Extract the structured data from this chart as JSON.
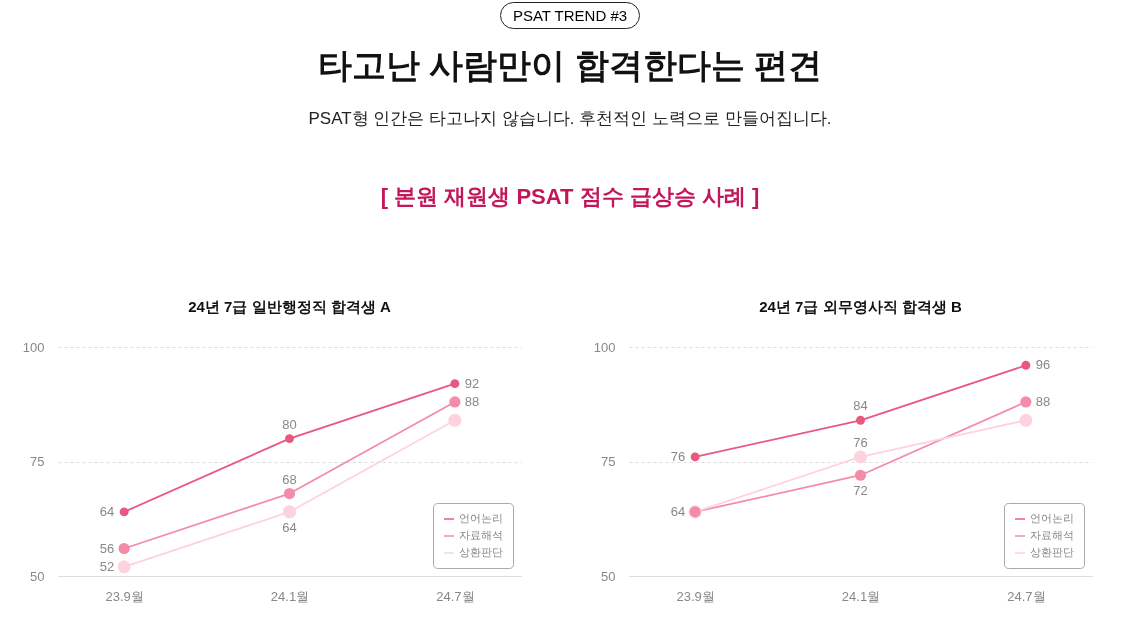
{
  "chart_data": [
    {
      "type": "line",
      "title": "24년 7급 일반행정직 합격생 A",
      "annotations": [
        "PSAT TREND #3",
        "타고난 사람만이 합격한다는 편견",
        "PSAT형 인간은 타고나지 않습니다. 후천적인 노력으로 만들어집니다.",
        "[ 본원 재원생 PSAT 점수 급상승 사례 ]"
      ],
      "categories": [
        "23.9월",
        "24.1월",
        "24.7월"
      ],
      "series": [
        {
          "name": "언어논리",
          "color": "#e8587f",
          "values": [
            64,
            80,
            92
          ],
          "value_labels": [
            "64",
            "80",
            "92"
          ]
        },
        {
          "name": "자료해석",
          "color": "#f48ca9",
          "values": [
            56,
            68,
            88
          ],
          "value_labels": [
            "56",
            "68",
            "88"
          ]
        },
        {
          "name": "상환판단",
          "color": "#fdd3de",
          "values": [
            52,
            64,
            84
          ],
          "value_labels": [
            "52",
            "64",
            null
          ]
        }
      ],
      "ylim": [
        50,
        100
      ],
      "yticks": [
        50,
        75,
        100
      ],
      "grid": "y",
      "legend": "bottom right",
      "marker": "circle"
    },
    {
      "type": "line",
      "title": "24년 7급 외무영사직 합격생 B",
      "categories": [
        "23.9월",
        "24.1월",
        "24.7월"
      ],
      "series": [
        {
          "name": "언어논리",
          "color": "#e8587f",
          "values": [
            76,
            84,
            96
          ],
          "value_labels": [
            "76",
            "84",
            "96"
          ]
        },
        {
          "name": "자료해석",
          "color": "#f48ca9",
          "values": [
            64,
            72,
            88
          ],
          "value_labels": [
            "64",
            "72",
            "88"
          ]
        },
        {
          "name": "상환판단",
          "color": "#fdd3de",
          "values": [
            64,
            76,
            84
          ],
          "value_labels": [
            null,
            "76",
            null
          ]
        }
      ],
      "ylim": [
        50,
        100
      ],
      "yticks": [
        50,
        75,
        100
      ],
      "grid": "y",
      "legend": "bottom right",
      "marker": "circle"
    }
  ]
}
